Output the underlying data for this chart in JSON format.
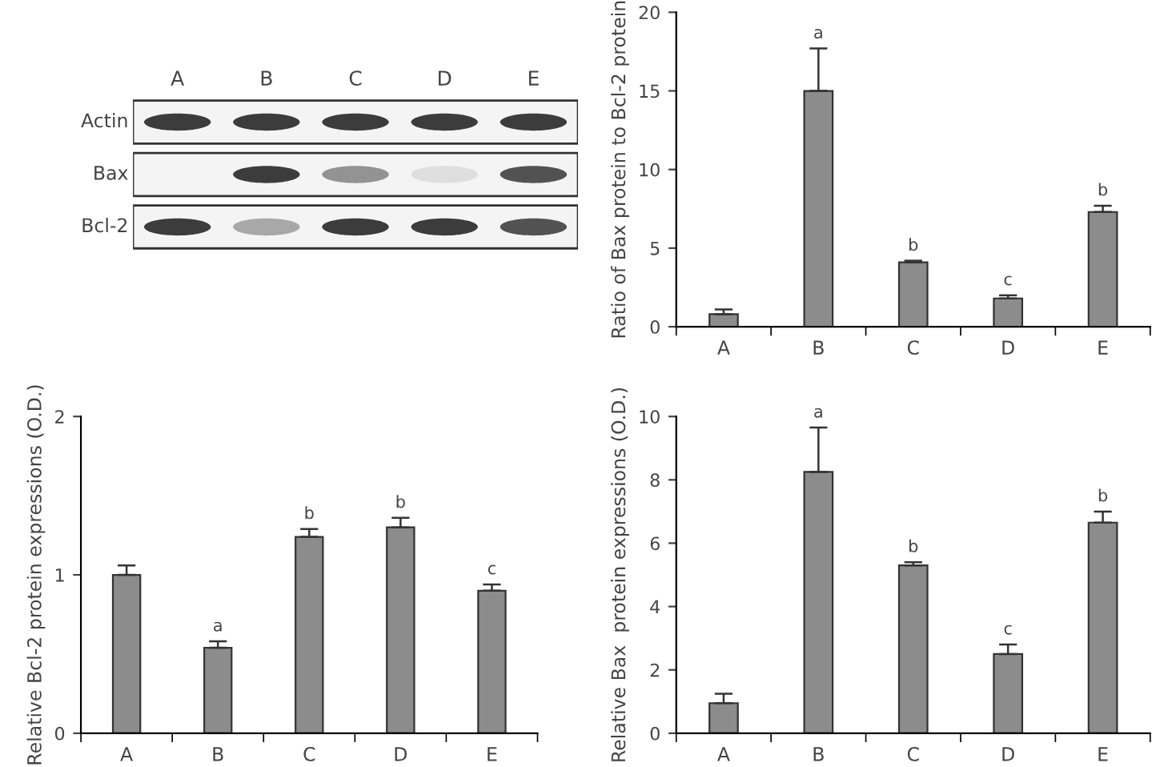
{
  "chart_data": [
    {
      "type": "other",
      "categories": [
        "A",
        "B",
        "C",
        "D",
        "E"
      ],
      "y_categories": [
        "Actin",
        "Bax",
        "Bcl-2"
      ]
    },
    {
      "type": "bar",
      "ylabel": "Ratio of Bax protein to Bcl-2 protein",
      "categories": [
        "A",
        "B",
        "C",
        "D",
        "E"
      ],
      "color": "#8c8c8c",
      "values": [
        0.8,
        15.0,
        4.1,
        1.8,
        7.3
      ],
      "errors": [
        [
          0.8,
          1.1
        ],
        [
          15.0,
          17.7
        ],
        [
          4.1,
          4.2
        ],
        [
          1.8,
          2.0
        ],
        [
          7.3,
          7.7
        ]
      ],
      "ylim": [
        0,
        20
      ],
      "yticks": [
        0,
        5,
        10,
        15,
        20
      ],
      "grid": false,
      "annotations": [
        {
          "text": "a",
          "x": "B",
          "y": 17.7
        },
        {
          "text": "b",
          "x": "C",
          "y": 4.2
        },
        {
          "text": "c",
          "x": "D",
          "y": 2.0
        },
        {
          "text": "b",
          "x": "E",
          "y": 7.7
        }
      ]
    },
    {
      "type": "bar",
      "ylabel": "Relative Bcl-2 protein expressions (O.D.)",
      "categories": [
        "A",
        "B",
        "C",
        "D",
        "E"
      ],
      "color": "#8c8c8c",
      "values": [
        1.0,
        0.54,
        1.24,
        1.3,
        0.9
      ],
      "errors": [
        [
          1.0,
          1.06
        ],
        [
          0.54,
          0.58
        ],
        [
          1.24,
          1.29
        ],
        [
          1.3,
          1.36
        ],
        [
          0.9,
          0.94
        ]
      ],
      "ylim": [
        0,
        2
      ],
      "yticks": [
        0,
        1,
        2
      ],
      "grid": false,
      "annotations": [
        {
          "text": "a",
          "x": "B",
          "y": 0.58
        },
        {
          "text": "b",
          "x": "C",
          "y": 1.29
        },
        {
          "text": "b",
          "x": "D",
          "y": 1.36
        },
        {
          "text": "c",
          "x": "E",
          "y": 0.94
        }
      ]
    },
    {
      "type": "bar",
      "ylabel": "Relative Bax  protein expressions (O.D.)",
      "categories": [
        "A",
        "B",
        "C",
        "D",
        "E"
      ],
      "color": "#8c8c8c",
      "values": [
        0.95,
        8.25,
        5.3,
        2.5,
        6.65
      ],
      "errors": [
        [
          0.95,
          1.25
        ],
        [
          8.25,
          9.65
        ],
        [
          5.3,
          5.4
        ],
        [
          2.5,
          2.8
        ],
        [
          6.65,
          7.0
        ]
      ],
      "ylim": [
        0,
        10
      ],
      "yticks": [
        0,
        2,
        4,
        6,
        8,
        10
      ],
      "grid": false,
      "annotations": [
        {
          "text": "a",
          "x": "B",
          "y": 9.65
        },
        {
          "text": "b",
          "x": "C",
          "y": 5.4
        },
        {
          "text": "c",
          "x": "D",
          "y": 2.8
        },
        {
          "text": "b",
          "x": "E",
          "y": 7.0
        }
      ]
    }
  ]
}
